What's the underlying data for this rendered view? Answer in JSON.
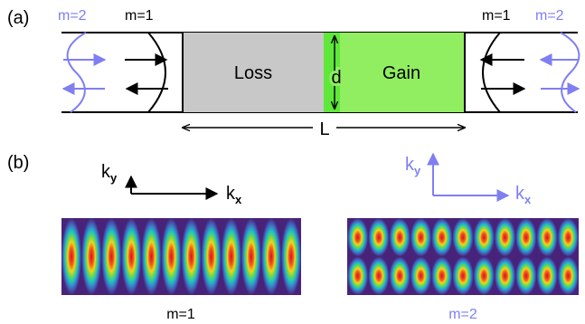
{
  "panel_a": {
    "label": "(a)",
    "mode2_left": "m=2",
    "mode1_left": "m=1",
    "mode1_right": "m=1",
    "mode2_right": "m=2",
    "loss": "Loss",
    "gain": "Gain",
    "d": "d",
    "L": "L"
  },
  "panel_b": {
    "label": "(b)",
    "left_axes": {
      "ky": "k",
      "ky_sub": "y",
      "kx": "k",
      "kx_sub": "x"
    },
    "right_axes": {
      "ky": "k",
      "ky_sub": "y",
      "kx": "k",
      "kx_sub": "x"
    },
    "left_caption": "m=1",
    "right_caption": "m=2"
  },
  "colors": {
    "mode1": "#000000",
    "mode2": "#7f7ff2",
    "loss_fill": "#c8c8c8",
    "gain_fill": "#90ee60",
    "gain_bright": "#5fe83a"
  },
  "patterns": {
    "m1": {
      "columns": 12,
      "rows": 1
    },
    "m2": {
      "columns": 11,
      "rows": 2
    }
  }
}
